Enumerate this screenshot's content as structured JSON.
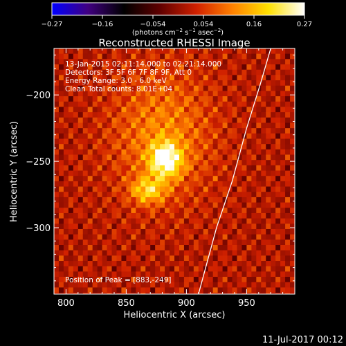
{
  "chart_data": {
    "type": "heatmap",
    "title": "Reconstructed RHESSI Image",
    "xlabel": "Heliocentric X (arcsec)",
    "ylabel": "Heliocentric Y (arcsec)",
    "xlim": [
      790,
      990
    ],
    "ylim": [
      -350,
      -165
    ],
    "x_ticks": [
      800,
      850,
      900,
      950
    ],
    "y_ticks": [
      -200,
      -250,
      -300
    ],
    "x_tick_labels": [
      "800",
      "850",
      "900",
      "950"
    ],
    "y_tick_labels": [
      "−200",
      "−250",
      "−300"
    ],
    "colorbar": {
      "range": [
        -0.27,
        0.27
      ],
      "tick_labels": [
        "−0.27",
        "−0.16",
        "−0.054",
        "0.054",
        "0.16",
        "0.27"
      ],
      "label_main": "(photons cm",
      "label_exp1": "−2",
      "label_mid1": " s",
      "label_exp2": "−1",
      "label_mid2": " asec",
      "label_exp3": "−2",
      "label_end": ")",
      "colormap": [
        "#0000ff",
        "#400080",
        "#000000",
        "#600000",
        "#d02000",
        "#ff8000",
        "#ffe000",
        "#ffffff"
      ]
    },
    "annotations": [
      "13-Jan-2015 02:11:14.000 to 02:21:14.000",
      "Detectors: 3F 5F 6F 7F 8F 9F, Att 0",
      "Energy Range: 3.0 - 6.0 keV",
      "Clean     Total counts: 8.01E+04"
    ],
    "peak_label": "Position of Peak = [883,-249]",
    "peak": {
      "x": 883,
      "y": -249,
      "value": 0.27
    },
    "sources": [
      {
        "x": 883,
        "y": -249,
        "sigma_x": 9,
        "sigma_y": 9,
        "amp": 0.22
      },
      {
        "x": 868,
        "y": -272,
        "sigma_x": 10,
        "sigma_y": 7,
        "amp": 0.14
      },
      {
        "x": 880,
        "y": -230,
        "sigma_x": 30,
        "sigma_y": 35,
        "amp": 0.1
      }
    ],
    "limb": [
      [
        910,
        -350
      ],
      [
        925,
        -300
      ],
      [
        938,
        -265
      ],
      [
        950,
        -225
      ],
      [
        962,
        -190
      ],
      [
        970,
        -165
      ]
    ]
  },
  "footer": {
    "date": "11-Jul-2017 00:12"
  }
}
